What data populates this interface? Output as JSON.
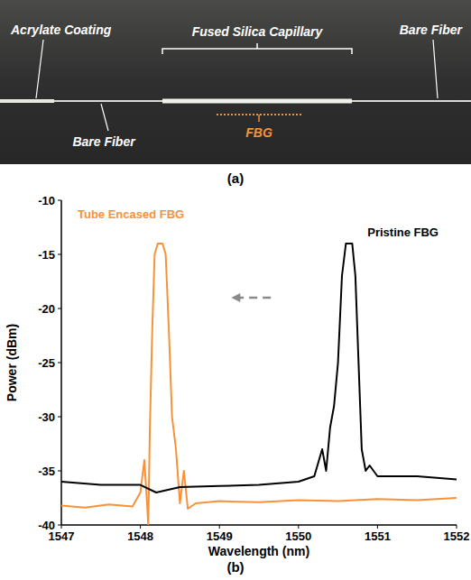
{
  "photo": {
    "labels": [
      "Acrylate Coating",
      "Fused Silica Capillary",
      "Bare Fiber",
      "Bare Fiber",
      "FBG"
    ]
  },
  "captions": [
    "(a)",
    "(b)"
  ],
  "chart_data": {
    "type": "line",
    "x_label": "Wavelength (nm)",
    "y_label": "Power (dBm)",
    "xlim": [
      1547,
      1552
    ],
    "xticks": [
      1547,
      1548,
      1549,
      1550,
      1551,
      1552
    ],
    "ylim": [
      -40,
      -10
    ],
    "yticks": [
      -40,
      -35,
      -30,
      -25,
      -20,
      -15,
      -10
    ],
    "grid": false,
    "legend": "top",
    "series": [
      {
        "name": "Tube Encased FBG",
        "color": "#f7923a",
        "x": [
          1547,
          1547.3,
          1547.6,
          1547.9,
          1548.0,
          1548.05,
          1548.08,
          1548.1,
          1548.12,
          1548.15,
          1548.18,
          1548.22,
          1548.28,
          1548.32,
          1548.36,
          1548.4,
          1548.45,
          1548.5,
          1548.55,
          1548.6,
          1548.7,
          1549,
          1549.5,
          1550,
          1550.5,
          1551,
          1551.5,
          1552
        ],
        "values": [
          -38.2,
          -38.4,
          -38.1,
          -38.3,
          -37,
          -34,
          -37.5,
          -40,
          -31,
          -22,
          -15,
          -14,
          -14,
          -15,
          -22,
          -30,
          -33,
          -38,
          -35,
          -38.5,
          -38,
          -37.8,
          -37.9,
          -37.7,
          -37.8,
          -37.6,
          -37.7,
          -37.5
        ]
      },
      {
        "name": "Pristine FBG",
        "color": "#000000",
        "x": [
          1547,
          1547.5,
          1548,
          1548.2,
          1548.5,
          1549,
          1549.5,
          1550,
          1550.2,
          1550.3,
          1550.35,
          1550.4,
          1550.45,
          1550.5,
          1550.55,
          1550.6,
          1550.68,
          1550.72,
          1550.76,
          1550.8,
          1550.85,
          1550.9,
          1551,
          1551.5,
          1552
        ],
        "values": [
          -36,
          -36.3,
          -36.3,
          -37,
          -36.5,
          -36.4,
          -36.3,
          -36,
          -35.5,
          -33,
          -35,
          -31,
          -29,
          -25,
          -17,
          -14,
          -14,
          -17,
          -25,
          -33,
          -35,
          -34.5,
          -35.5,
          -35.5,
          -35.8
        ]
      }
    ]
  }
}
